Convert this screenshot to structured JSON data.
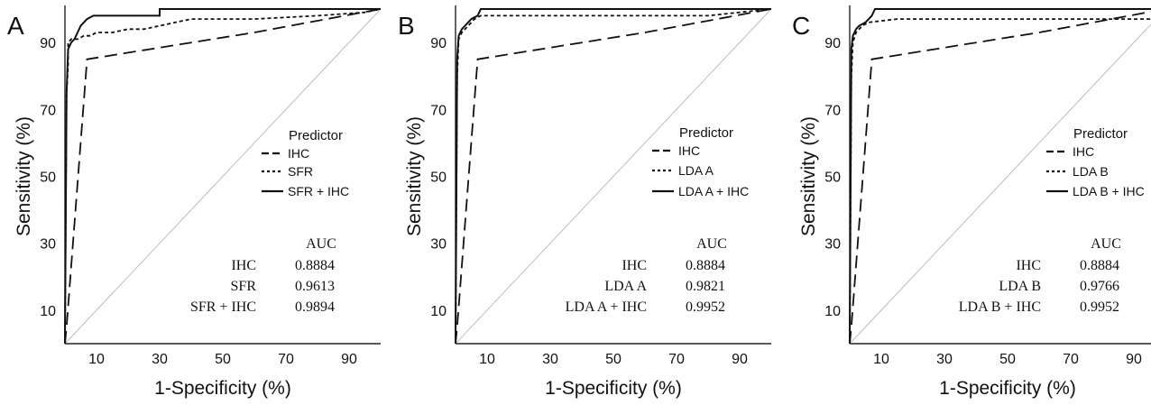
{
  "chart_data": [
    {
      "type": "line",
      "panel_label": "A",
      "xlabel": "1-Specificity (%)",
      "ylabel": "Sensitivity (%)",
      "xlim": [
        0,
        100
      ],
      "ylim": [
        0,
        100
      ],
      "xticks": [
        "10",
        "30",
        "50",
        "70",
        "90"
      ],
      "yticks": [
        "10",
        "30",
        "50",
        "70",
        "90"
      ],
      "legend_title": "Predictor",
      "series": [
        {
          "name": "IHC",
          "style": "dashed",
          "points": [
            [
              0,
              0
            ],
            [
              0.5,
              5
            ],
            [
              7,
              85
            ],
            [
              60,
              93
            ],
            [
              100,
              100
            ]
          ]
        },
        {
          "name": "SFR",
          "style": "dotted",
          "points": [
            [
              0,
              0
            ],
            [
              0.5,
              75
            ],
            [
              1,
              83
            ],
            [
              1,
              90
            ],
            [
              2,
              91
            ],
            [
              4,
              91
            ],
            [
              6,
              92
            ],
            [
              8,
              92
            ],
            [
              10,
              93
            ],
            [
              15,
              93
            ],
            [
              20,
              94
            ],
            [
              25,
              94
            ],
            [
              30,
              95
            ],
            [
              35,
              96
            ],
            [
              40,
              97
            ],
            [
              60,
              97
            ],
            [
              80,
              98
            ],
            [
              95,
              99
            ],
            [
              100,
              100
            ]
          ]
        },
        {
          "name": "SFR + IHC",
          "style": "solid",
          "points": [
            [
              0,
              0
            ],
            [
              0.5,
              75
            ],
            [
              1,
              88
            ],
            [
              2,
              90
            ],
            [
              3,
              91
            ],
            [
              4,
              93
            ],
            [
              5,
              95
            ],
            [
              6,
              96
            ],
            [
              7,
              97
            ],
            [
              9,
              98
            ],
            [
              30,
              98
            ],
            [
              30,
              100
            ],
            [
              100,
              100
            ]
          ]
        }
      ],
      "auc_header": "AUC",
      "auc_rows": [
        {
          "label": "IHC",
          "value": "0.8884"
        },
        {
          "label": "SFR",
          "value": "0.9613"
        },
        {
          "label": "SFR + IHC",
          "value": "0.9894"
        }
      ]
    },
    {
      "type": "line",
      "panel_label": "B",
      "xlabel": "1-Specificity (%)",
      "ylabel": "Sensitivity (%)",
      "xlim": [
        0,
        100
      ],
      "ylim": [
        0,
        100
      ],
      "xticks": [
        "10",
        "30",
        "50",
        "70",
        "90"
      ],
      "yticks": [
        "10",
        "30",
        "50",
        "70",
        "90"
      ],
      "legend_title": "Predictor",
      "series": [
        {
          "name": "IHC",
          "style": "dashed",
          "points": [
            [
              0,
              0
            ],
            [
              0.5,
              5
            ],
            [
              7,
              85
            ],
            [
              60,
              93
            ],
            [
              100,
              100
            ]
          ]
        },
        {
          "name": "LDA A",
          "style": "dotted",
          "points": [
            [
              0,
              0
            ],
            [
              0.5,
              80
            ],
            [
              1,
              91
            ],
            [
              2,
              93
            ],
            [
              4,
              95
            ],
            [
              6,
              97
            ],
            [
              8,
              98
            ],
            [
              80,
              98
            ],
            [
              100,
              100
            ]
          ]
        },
        {
          "name": "LDA A + IHC",
          "style": "solid",
          "points": [
            [
              0,
              0
            ],
            [
              0.5,
              85
            ],
            [
              1,
              92
            ],
            [
              2,
              94
            ],
            [
              3,
              95
            ],
            [
              5,
              97
            ],
            [
              7,
              98
            ],
            [
              8,
              100
            ],
            [
              100,
              100
            ]
          ]
        }
      ],
      "auc_header": "AUC",
      "auc_rows": [
        {
          "label": "IHC",
          "value": "0.8884"
        },
        {
          "label": "LDA A",
          "value": "0.9821"
        },
        {
          "label": "LDA A + IHC",
          "value": "0.9952"
        }
      ]
    },
    {
      "type": "line",
      "panel_label": "C",
      "xlabel": "1-Specificity (%)",
      "ylabel": "Sensitivity (%)",
      "xlim": [
        0,
        100
      ],
      "ylim": [
        0,
        100
      ],
      "xticks": [
        "10",
        "30",
        "50",
        "70",
        "90"
      ],
      "yticks": [
        "10",
        "30",
        "50",
        "70",
        "90"
      ],
      "legend_title": "Predictor",
      "series": [
        {
          "name": "IHC",
          "style": "dashed",
          "points": [
            [
              0,
              0
            ],
            [
              0.5,
              5
            ],
            [
              7,
              85
            ],
            [
              60,
              93
            ],
            [
              100,
              100
            ]
          ]
        },
        {
          "name": "LDA B",
          "style": "dotted",
          "points": [
            [
              0,
              0
            ],
            [
              0.5,
              80
            ],
            [
              1,
              90
            ],
            [
              2,
              93
            ],
            [
              4,
              95
            ],
            [
              6,
              96
            ],
            [
              15,
              97
            ],
            [
              95,
              97
            ],
            [
              100,
              100
            ]
          ]
        },
        {
          "name": "LDA B + IHC",
          "style": "solid",
          "points": [
            [
              0,
              0
            ],
            [
              0.5,
              88
            ],
            [
              1,
              92
            ],
            [
              2,
              94
            ],
            [
              3,
              95
            ],
            [
              5,
              96
            ],
            [
              7,
              98
            ],
            [
              8,
              100
            ],
            [
              100,
              100
            ]
          ]
        }
      ],
      "auc_header": "AUC",
      "auc_rows": [
        {
          "label": "IHC",
          "value": "0.8884"
        },
        {
          "label": "LDA B",
          "value": "0.9766"
        },
        {
          "label": "LDA B + IHC",
          "value": "0.9952"
        }
      ]
    }
  ]
}
